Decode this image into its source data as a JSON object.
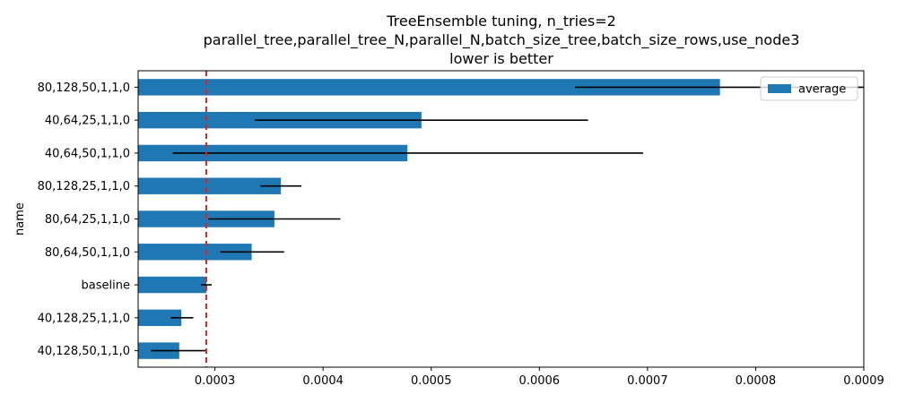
{
  "chart_data": {
    "type": "bar",
    "orientation": "horizontal",
    "title_lines": [
      "TreeEnsemble tuning, n_tries=2",
      "parallel_tree,parallel_tree_N,parallel_N,batch_size_tree,batch_size_rows,use_node3",
      "lower is better"
    ],
    "ylabel": "name",
    "xlabel": "",
    "xlim": [
      0.000229,
      0.0009
    ],
    "x_ticks": [
      0.0003,
      0.0004,
      0.0005,
      0.0006,
      0.0007,
      0.0008,
      0.0009
    ],
    "x_tick_labels": [
      "0.0003",
      "0.0004",
      "0.0005",
      "0.0006",
      "0.0007",
      "0.0008",
      "0.0009"
    ],
    "categories": [
      "80,128,50,1,1,0",
      "40,64,25,1,1,0",
      "40,64,50,1,1,0",
      "80,128,25,1,1,0",
      "80,64,25,1,1,0",
      "80,64,50,1,1,0",
      "baseline",
      "40,128,25,1,1,0",
      "40,128,50,1,1,0"
    ],
    "series": [
      {
        "name": "average",
        "color": "#1f77b4",
        "values": [
          0.000767,
          0.000491,
          0.000478,
          0.000361,
          0.000355,
          0.000334,
          0.000292,
          0.000269,
          0.000267
        ],
        "error_low": [
          0.000633,
          0.000337,
          0.000261,
          0.000342,
          0.000294,
          0.000305,
          0.000287,
          0.000259,
          0.000241
        ],
        "error_high": [
          0.0009,
          0.000645,
          0.000696,
          0.00038,
          0.000416,
          0.000364,
          0.000297,
          0.00028,
          0.000292
        ]
      }
    ],
    "reference_line": {
      "value": 0.000292,
      "color": "#d62728",
      "style": "dashed"
    },
    "legend": {
      "position": "top-right",
      "entries": [
        "average"
      ]
    },
    "grid": false
  }
}
